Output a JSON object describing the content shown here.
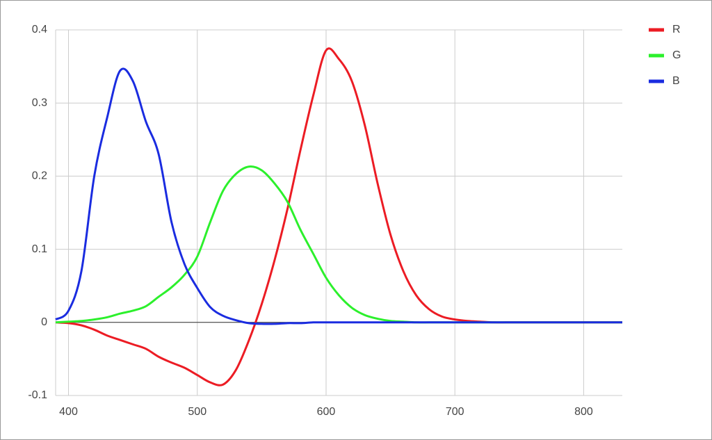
{
  "chart_data": {
    "type": "line",
    "x": [
      390,
      400,
      410,
      420,
      430,
      440,
      450,
      460,
      470,
      480,
      490,
      500,
      510,
      520,
      530,
      540,
      550,
      560,
      570,
      580,
      590,
      600,
      610,
      620,
      630,
      640,
      650,
      660,
      670,
      680,
      690,
      700,
      710,
      720,
      730,
      740,
      750,
      760,
      770,
      780,
      790,
      800,
      810,
      820,
      830
    ],
    "series": [
      {
        "name": "R",
        "color": "#ec1c24",
        "values": [
          0,
          -0.001,
          -0.004,
          -0.01,
          -0.018,
          -0.024,
          -0.03,
          -0.036,
          -0.047,
          -0.055,
          -0.062,
          -0.072,
          -0.082,
          -0.085,
          -0.065,
          -0.025,
          0.025,
          0.085,
          0.155,
          0.235,
          0.31,
          0.372,
          0.36,
          0.33,
          0.27,
          0.19,
          0.12,
          0.07,
          0.037,
          0.018,
          0.008,
          0.004,
          0.002,
          0.001,
          0,
          0,
          0,
          0,
          0,
          0,
          0,
          0,
          0,
          0,
          0
        ]
      },
      {
        "name": "G",
        "color": "#2cf02c",
        "values": [
          0,
          0.001,
          0.002,
          0.004,
          0.007,
          0.012,
          0.016,
          0.022,
          0.035,
          0.048,
          0.065,
          0.09,
          0.137,
          0.18,
          0.203,
          0.213,
          0.208,
          0.19,
          0.165,
          0.127,
          0.094,
          0.061,
          0.037,
          0.02,
          0.01,
          0.005,
          0.002,
          0.001,
          0,
          0,
          0,
          0,
          0,
          0,
          0,
          0,
          0,
          0,
          0,
          0,
          0,
          0,
          0,
          0,
          0
        ]
      },
      {
        "name": "B",
        "color": "#1a2ce0",
        "values": [
          0.004,
          0.016,
          0.07,
          0.2,
          0.28,
          0.344,
          0.33,
          0.275,
          0.23,
          0.137,
          0.08,
          0.047,
          0.021,
          0.009,
          0.003,
          -0.001,
          -0.002,
          -0.002,
          -0.001,
          -0.001,
          0,
          0,
          0,
          0,
          0,
          0,
          0,
          0,
          0,
          0,
          0,
          0,
          0,
          0,
          0,
          0,
          0,
          0,
          0,
          0,
          0,
          0,
          0,
          0,
          0
        ]
      }
    ],
    "xlim": [
      390,
      830
    ],
    "ylim": [
      -0.1,
      0.4
    ],
    "xticks": [
      400,
      500,
      600,
      700,
      800
    ],
    "yticks": [
      -0.1,
      0,
      0.1,
      0.2,
      0.3,
      0.4
    ],
    "grid": true,
    "legend": "right"
  }
}
